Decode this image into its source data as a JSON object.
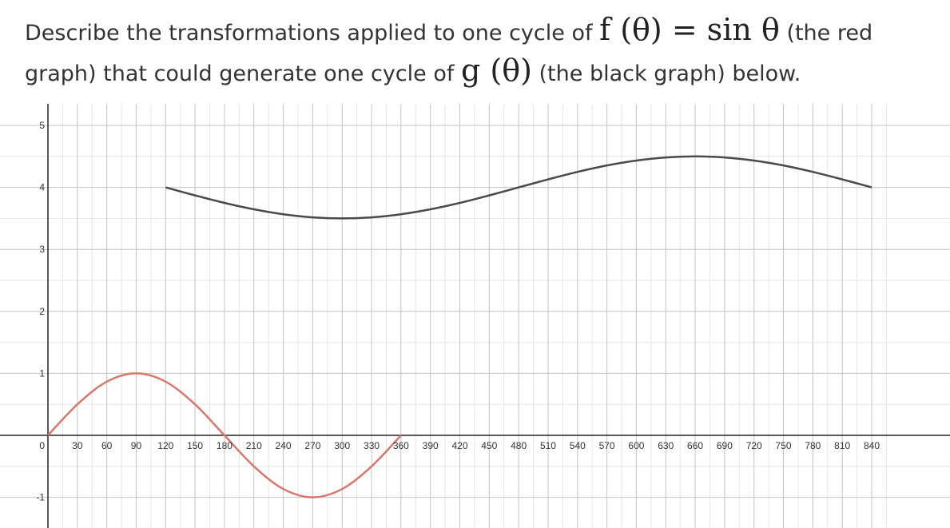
{
  "question": {
    "part1": "Describe the transformations applied to one cycle of",
    "f_math": "f (θ) = sin θ",
    "part2": "(the red",
    "part3": "graph) that could generate one cycle of",
    "g_math": "g (θ)",
    "part4": "(the black graph) below."
  },
  "chart_data": {
    "type": "line",
    "title": "",
    "xlabel": "",
    "ylabel": "",
    "xlim": [
      -0.5,
      860
    ],
    "ylim": [
      -1.3,
      5.3
    ],
    "grid": true,
    "x_ticks": [
      30,
      60,
      90,
      120,
      150,
      180,
      210,
      240,
      270,
      300,
      330,
      360,
      390,
      420,
      450,
      480,
      510,
      540,
      570,
      600,
      630,
      660,
      690,
      720,
      750,
      780,
      810,
      840
    ],
    "x_tick_labels": [
      "30",
      "60",
      "90",
      "120",
      "150",
      "180",
      "210",
      "240",
      "270",
      "300",
      "330",
      "360",
      "390",
      "420",
      "450",
      "480",
      "510",
      "540",
      "570",
      "600",
      "630",
      "660",
      "690",
      "720",
      "750",
      "780",
      "810",
      "840"
    ],
    "y_ticks": [
      -1,
      1,
      2,
      3,
      4,
      5
    ],
    "y_tick_labels": [
      "-1",
      "1",
      "2",
      "3",
      "4",
      "5"
    ],
    "origin_label": "0",
    "series": [
      {
        "color": "#d9776b",
        "x": [
          0,
          30,
          60,
          90,
          120,
          150,
          180,
          210,
          240,
          270,
          300,
          330,
          360
        ],
        "y": [
          0,
          0.5,
          0.866,
          1,
          0.866,
          0.5,
          0,
          -0.5,
          -0.866,
          -1,
          -0.866,
          -0.5,
          0
        ]
      },
      {
        "color": "#4a4a4a",
        "x": [
          120,
          150,
          180,
          210,
          240,
          270,
          300,
          330,
          360,
          390,
          420,
          450,
          480,
          510,
          540,
          570,
          600,
          630,
          660,
          690,
          720,
          750,
          780,
          810,
          840
        ],
        "y": [
          4,
          3.871,
          3.75,
          3.647,
          3.567,
          3.517,
          3.5,
          3.517,
          3.567,
          3.647,
          3.75,
          3.871,
          4,
          4.129,
          4.25,
          4.354,
          4.433,
          4.483,
          4.5,
          4.483,
          4.433,
          4.354,
          4.25,
          4.129,
          4
        ]
      }
    ]
  }
}
